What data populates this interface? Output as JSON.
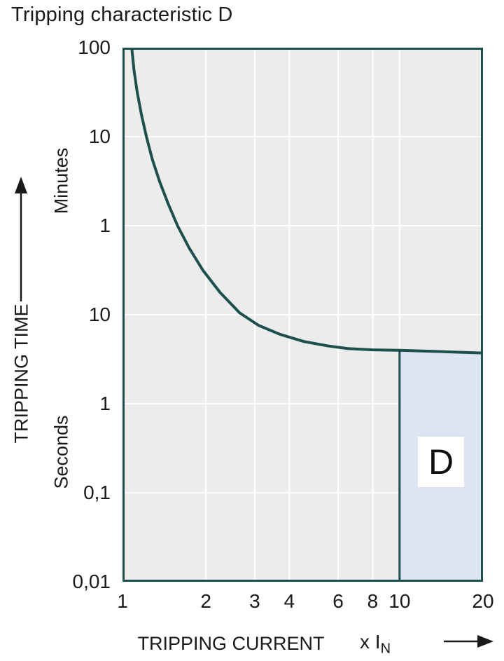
{
  "title": "Tripping characteristic D",
  "chart_data": {
    "type": "line",
    "title": "Tripping characteristic D",
    "xlabel": "TRIPPING CURRENT",
    "x_unit_main": "x I",
    "x_unit_sub": "N",
    "ylabel": "TRIPPING TIME",
    "y_unit_upper": "Minutes",
    "y_unit_lower": "Seconds",
    "x_scale": "log",
    "x_range": [
      1,
      20
    ],
    "x_ticks": [
      "1",
      "2",
      "3",
      "4",
      "6",
      "8",
      "10",
      "20"
    ],
    "y_ticks_top_to_bottom": [
      "100",
      "10",
      "1",
      "10",
      "1",
      "0,1",
      "0,01"
    ],
    "y_decades": 6,
    "y_decade_values_bottom_to_top": [
      "0,01 s",
      "0,1 s",
      "1 s",
      "10 s",
      "1 min",
      "10 min",
      "100 min"
    ],
    "grid": true,
    "curve": {
      "name": "Tripping characteristic D curve",
      "points_x_vs_decade": [
        [
          1.08,
          6.0
        ],
        [
          1.1,
          5.75
        ],
        [
          1.13,
          5.5
        ],
        [
          1.17,
          5.25
        ],
        [
          1.22,
          5.0
        ],
        [
          1.28,
          4.75
        ],
        [
          1.36,
          4.5
        ],
        [
          1.46,
          4.25
        ],
        [
          1.58,
          4.0
        ],
        [
          1.74,
          3.75
        ],
        [
          1.95,
          3.5
        ],
        [
          2.25,
          3.25
        ],
        [
          2.65,
          3.02
        ],
        [
          3.1,
          2.88
        ],
        [
          3.7,
          2.78
        ],
        [
          4.5,
          2.7
        ],
        [
          5.5,
          2.65
        ],
        [
          6.5,
          2.62
        ],
        [
          8.0,
          2.605
        ],
        [
          10,
          2.6
        ],
        [
          13,
          2.59
        ],
        [
          16,
          2.58
        ],
        [
          20,
          2.57
        ]
      ]
    },
    "region": {
      "label": "D",
      "x_from": 10,
      "x_to": 20,
      "y_from_decade": 0,
      "top_follows_curve": true
    },
    "colors": {
      "curve": "#1c4f4e",
      "frame": "#1c4f4e",
      "plot_bg": "#ececea",
      "grid": "#ffffff",
      "region_fill": "#dde4f3",
      "text": "#1a1a1a"
    }
  }
}
